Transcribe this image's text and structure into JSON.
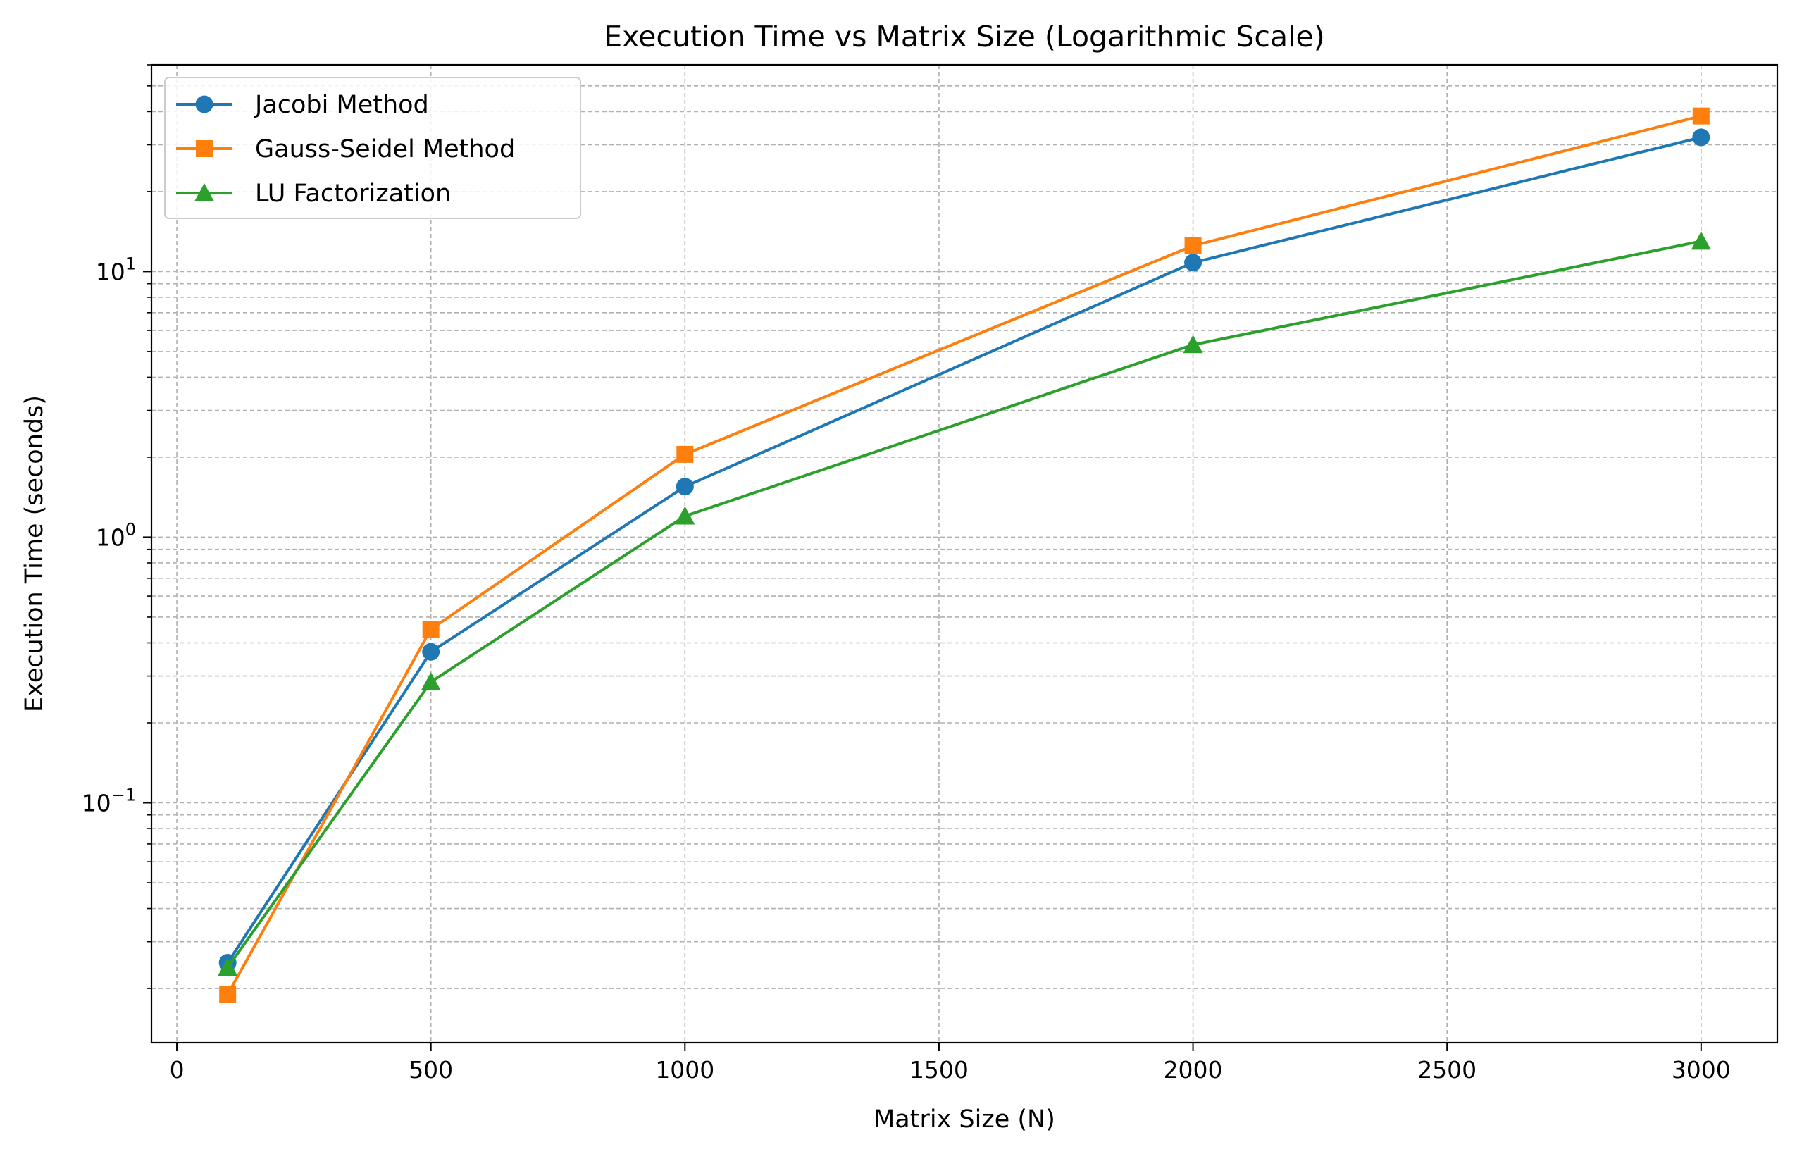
{
  "chart_data": {
    "type": "line",
    "title": "Execution Time vs Matrix Size (Logarithmic Scale)",
    "xlabel": "Matrix Size (N)",
    "ylabel": "Execution Time (seconds)",
    "x": [
      100,
      500,
      1000,
      2000,
      3000
    ],
    "xlim": [
      -50,
      3150
    ],
    "ylim": [
      0.0125,
      60
    ],
    "yscale": "log",
    "x_ticks": [
      0,
      500,
      1000,
      1500,
      2000,
      2500,
      3000
    ],
    "x_tick_labels": [
      "0",
      "500",
      "1000",
      "1500",
      "2000",
      "2500",
      "3000"
    ],
    "y_ticks": [
      0.1,
      1,
      10
    ],
    "y_tick_labels": [
      {
        "base": "10",
        "exp": "−1"
      },
      {
        "base": "10",
        "exp": "0"
      },
      {
        "base": "10",
        "exp": "1"
      }
    ],
    "grid": true,
    "legend_position": "upper-left",
    "series": [
      {
        "name": "Jacobi Method",
        "marker": "circle",
        "color": "#1f77b4",
        "values": [
          0.025,
          0.37,
          1.55,
          10.8,
          32
        ]
      },
      {
        "name": "Gauss-Seidel Method",
        "marker": "square",
        "color": "#ff7f0e",
        "values": [
          0.019,
          0.45,
          2.05,
          12.5,
          38.5
        ]
      },
      {
        "name": "LU Factorization",
        "marker": "triangle",
        "color": "#2ca02c",
        "values": [
          0.024,
          0.285,
          1.2,
          5.3,
          13
        ]
      }
    ]
  }
}
